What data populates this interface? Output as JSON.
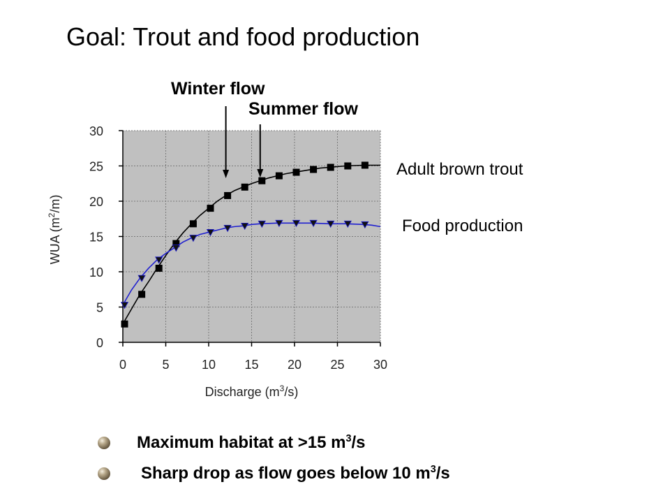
{
  "title": "Goal: Trout and food production",
  "annotations": {
    "winter": "Winter flow",
    "summer": "Summer flow"
  },
  "series_labels": {
    "trout": "Adult brown trout",
    "food": "Food production"
  },
  "bullets": [
    {
      "text": "Maximum habitat at >15 m",
      "sup": "3",
      "tail": "/s"
    },
    {
      "text": "Sharp drop as flow goes below 10 m",
      "sup": "3",
      "tail": "/s"
    }
  ],
  "colors": {
    "plot_bg": "#c0c0c0",
    "trout_series": "#000000",
    "food_series": "#1f1fd0",
    "bullet": "#8a7a5e"
  },
  "chart_data": {
    "type": "line",
    "xlabel": {
      "main": "Discharge (m",
      "sup": "3",
      "tail": "/s)"
    },
    "ylabel": {
      "main": "WUA (m",
      "sup": "2",
      "tail": "/m)"
    },
    "xlim": [
      0,
      30
    ],
    "ylim": [
      0,
      30
    ],
    "xticks": [
      0,
      5,
      10,
      15,
      20,
      25,
      30
    ],
    "yticks": [
      0,
      5,
      10,
      15,
      20,
      25,
      30
    ],
    "grid": true,
    "series": [
      {
        "name": "Adult brown trout",
        "marker": "square",
        "x": [
          0,
          2,
          4,
          6,
          8,
          10,
          12,
          14,
          16,
          18,
          20,
          22,
          24,
          26,
          28
        ],
        "y": [
          2.6,
          6.8,
          10.5,
          14.0,
          16.8,
          19.0,
          20.8,
          22.0,
          22.9,
          23.6,
          24.1,
          24.5,
          24.8,
          25.0,
          25.1
        ],
        "curve_x": [
          0,
          1,
          2,
          3,
          4,
          5,
          6,
          7,
          8,
          9,
          10,
          11,
          12,
          13,
          14,
          15,
          16,
          17,
          18,
          19,
          20,
          21,
          22,
          23,
          24,
          25,
          26,
          27,
          28,
          29,
          30
        ],
        "curve_y": [
          2.6,
          4.7,
          6.8,
          8.6,
          10.5,
          12.3,
          14.0,
          15.5,
          16.8,
          18.0,
          19.0,
          20.0,
          20.8,
          21.5,
          22.0,
          22.5,
          22.9,
          23.3,
          23.6,
          23.9,
          24.1,
          24.3,
          24.5,
          24.7,
          24.8,
          24.9,
          25.0,
          25.05,
          25.1,
          25.1,
          25.1
        ]
      },
      {
        "name": "Food production",
        "marker": "triangle-down",
        "x": [
          0,
          2,
          4,
          6,
          8,
          10,
          12,
          14,
          16,
          18,
          20,
          22,
          24,
          26,
          28
        ],
        "y": [
          5.3,
          9.1,
          11.7,
          13.4,
          14.8,
          15.6,
          16.2,
          16.5,
          16.8,
          16.9,
          16.9,
          16.9,
          16.8,
          16.8,
          16.7
        ],
        "curve_x": [
          0,
          1,
          2,
          3,
          4,
          5,
          6,
          7,
          8,
          9,
          10,
          11,
          12,
          13,
          14,
          15,
          16,
          17,
          18,
          19,
          20,
          21,
          22,
          23,
          24,
          25,
          26,
          27,
          28,
          29,
          30
        ],
        "curve_y": [
          5.3,
          7.4,
          9.1,
          10.5,
          11.7,
          12.6,
          13.4,
          14.2,
          14.8,
          15.3,
          15.6,
          15.9,
          16.2,
          16.4,
          16.5,
          16.7,
          16.8,
          16.85,
          16.9,
          16.9,
          16.9,
          16.9,
          16.9,
          16.85,
          16.8,
          16.8,
          16.8,
          16.75,
          16.7,
          16.6,
          16.4
        ]
      }
    ],
    "arrows": [
      {
        "label": "Winter flow",
        "x": 12
      },
      {
        "label": "Summer flow",
        "x": 16
      }
    ]
  }
}
